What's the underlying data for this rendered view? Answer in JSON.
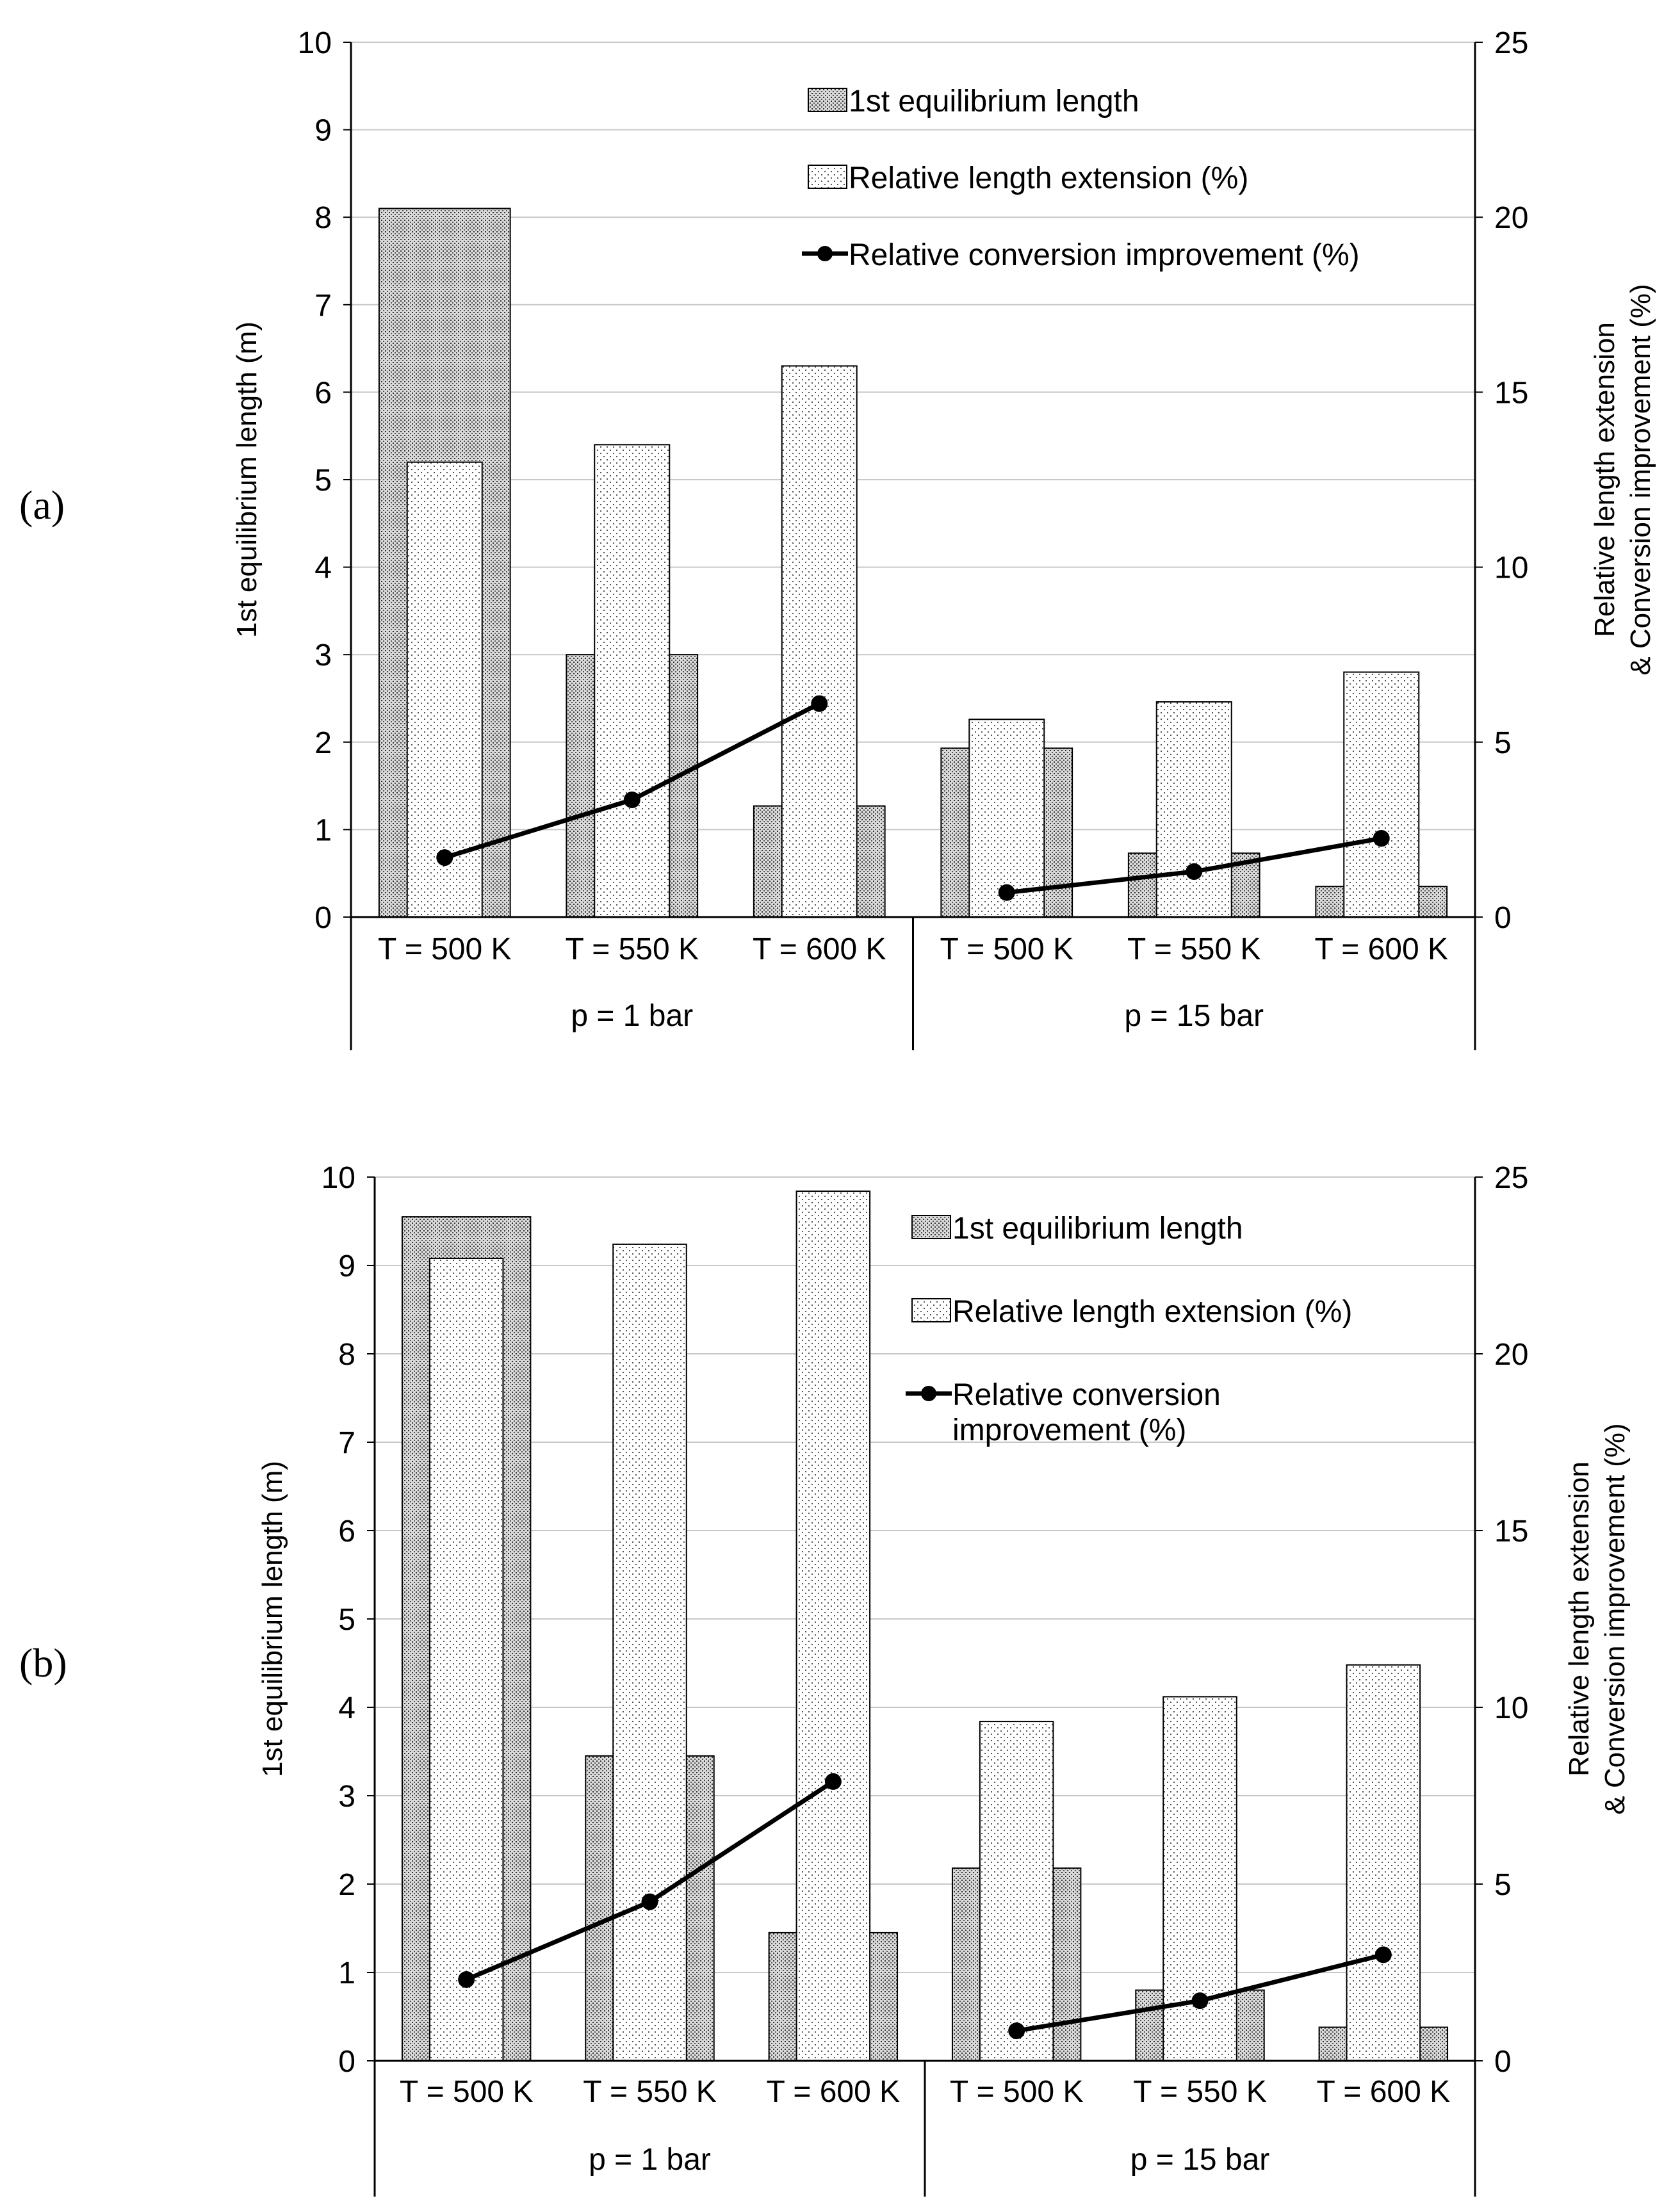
{
  "chart_data": [
    {
      "panel_label": "(a)",
      "type": "bar",
      "categories": [
        "T = 500 K",
        "T = 550 K",
        "T = 600 K",
        "T = 500 K",
        "T = 550 K",
        "T = 600 K"
      ],
      "groups": [
        {
          "label": "p = 1 bar",
          "span": [
            0,
            2
          ]
        },
        {
          "label": "p = 15 bar",
          "span": [
            3,
            5
          ]
        }
      ],
      "ylabel_left": "1st equilibrium length (m)",
      "ylabel_right_lines": [
        "Relative length extension",
        "& Conversion improvement (%)"
      ],
      "ylim_left": [
        0,
        10
      ],
      "ylim_right": [
        0,
        25
      ],
      "left_ticks": [
        "0",
        "1",
        "2",
        "3",
        "4",
        "5",
        "6",
        "7",
        "8",
        "9",
        "10"
      ],
      "right_ticks": [
        "0",
        "5",
        "10",
        "15",
        "20",
        "25"
      ],
      "grid": true,
      "legend_position": "top-right",
      "legend_lines": [
        [
          "1st equilibrium length"
        ],
        [
          "Relative length extension (%)"
        ],
        [
          "Relative conversion improvement (%)"
        ]
      ],
      "series": [
        {
          "name": "1st equilibrium length",
          "kind": "bar",
          "axis": "left",
          "values": [
            8.1,
            3.0,
            1.27,
            1.93,
            0.73,
            0.35
          ]
        },
        {
          "name": "Relative length extension (%)",
          "kind": "bar",
          "axis": "right",
          "values": [
            13.0,
            13.5,
            15.75,
            5.65,
            6.15,
            7.0
          ]
        },
        {
          "name": "Relative conversion improvement (%)",
          "kind": "line",
          "axis": "right",
          "values": [
            1.7,
            3.35,
            6.1,
            0.7,
            1.3,
            2.25
          ]
        }
      ]
    },
    {
      "panel_label": "(b)",
      "type": "bar",
      "categories": [
        "T = 500 K",
        "T = 550 K",
        "T = 600 K",
        "T = 500 K",
        "T = 550 K",
        "T = 600 K"
      ],
      "groups": [
        {
          "label": "p = 1 bar",
          "span": [
            0,
            2
          ]
        },
        {
          "label": "p = 15 bar",
          "span": [
            3,
            5
          ]
        }
      ],
      "ylabel_left": "1st equilibrium length (m)",
      "ylabel_right_lines": [
        "Relative length extension",
        "& Conversion improvement (%)"
      ],
      "ylim_left": [
        0,
        10
      ],
      "ylim_right": [
        0,
        25
      ],
      "left_ticks": [
        "0",
        "1",
        "2",
        "3",
        "4",
        "5",
        "6",
        "7",
        "8",
        "9",
        "10"
      ],
      "right_ticks": [
        "0",
        "5",
        "10",
        "15",
        "20",
        "25"
      ],
      "grid": true,
      "legend_position": "top-right",
      "legend_lines": [
        [
          "1st equilibrium length"
        ],
        [
          "Relative length extension (%)"
        ],
        [
          "Relative conversion",
          "improvement (%)"
        ]
      ],
      "series": [
        {
          "name": "1st equilibrium length",
          "kind": "bar",
          "axis": "left",
          "values": [
            9.55,
            3.45,
            1.45,
            2.18,
            0.8,
            0.38
          ]
        },
        {
          "name": "Relative length extension (%)",
          "kind": "bar",
          "axis": "right",
          "values": [
            22.7,
            23.1,
            24.6,
            9.6,
            10.3,
            11.2
          ]
        },
        {
          "name": "Relative conversion improvement (%)",
          "kind": "line",
          "axis": "right",
          "values": [
            2.3,
            4.5,
            7.9,
            0.85,
            1.7,
            3.0
          ]
        }
      ]
    }
  ]
}
